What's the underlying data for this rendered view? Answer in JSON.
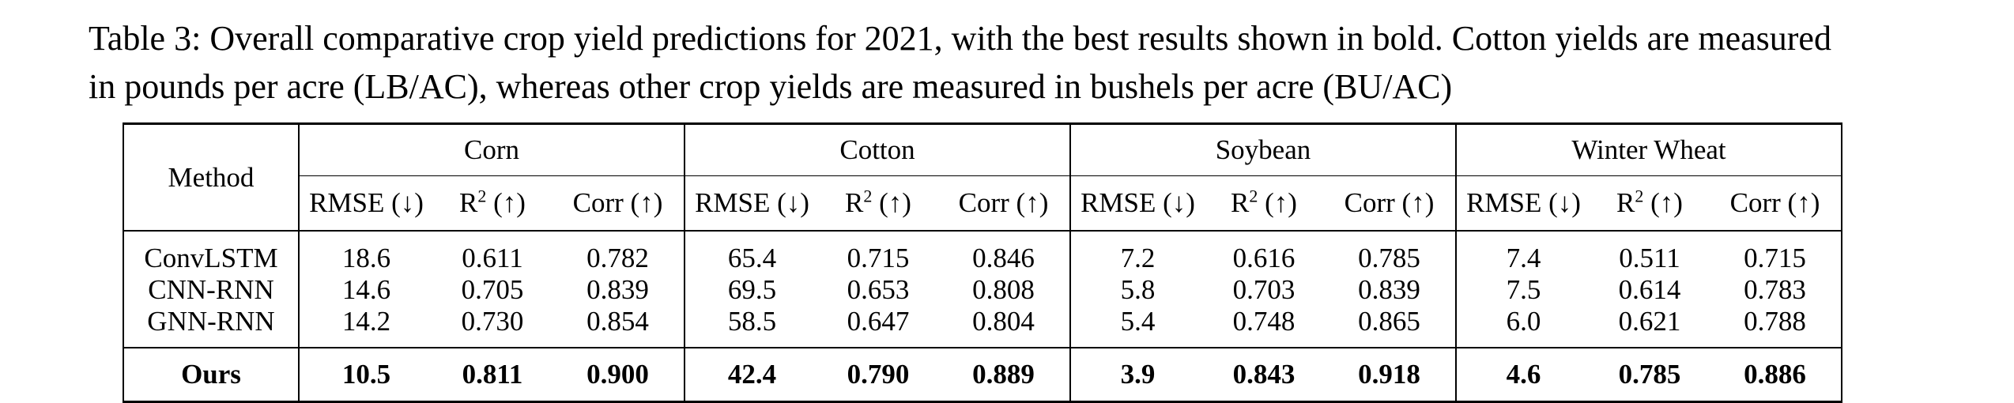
{
  "caption": {
    "line1": "Table 3: Overall comparative crop yield predictions for 2021, with the best results shown in bold. Cotton yields are measured",
    "line2": "in pounds per acre (LB/AC), whereas other crop yields are measured in bushels per acre (BU/AC)"
  },
  "table": {
    "method_header": "Method",
    "crops": [
      "Corn",
      "Cotton",
      "Soybean",
      "Winter Wheat"
    ],
    "metrics": {
      "rmse": "RMSE (↓)",
      "r2_base": "R",
      "r2_sup": "2",
      "r2_arrow": " (↑)",
      "corr": "Corr (↑)"
    },
    "rows": [
      {
        "method": "ConvLSTM",
        "values": [
          "18.6",
          "0.611",
          "0.782",
          "65.4",
          "0.715",
          "0.846",
          "7.2",
          "0.616",
          "0.785",
          "7.4",
          "0.511",
          "0.715"
        ]
      },
      {
        "method": "CNN-RNN",
        "values": [
          "14.6",
          "0.705",
          "0.839",
          "69.5",
          "0.653",
          "0.808",
          "5.8",
          "0.703",
          "0.839",
          "7.5",
          "0.614",
          "0.783"
        ]
      },
      {
        "method": "GNN-RNN",
        "values": [
          "14.2",
          "0.730",
          "0.854",
          "58.5",
          "0.647",
          "0.804",
          "5.4",
          "0.748",
          "0.865",
          "6.0",
          "0.621",
          "0.788"
        ]
      }
    ],
    "ours": {
      "method": "Ours",
      "values": [
        "10.5",
        "0.811",
        "0.900",
        "42.4",
        "0.790",
        "0.889",
        "3.9",
        "0.843",
        "0.918",
        "4.6",
        "0.785",
        "0.886"
      ]
    }
  }
}
